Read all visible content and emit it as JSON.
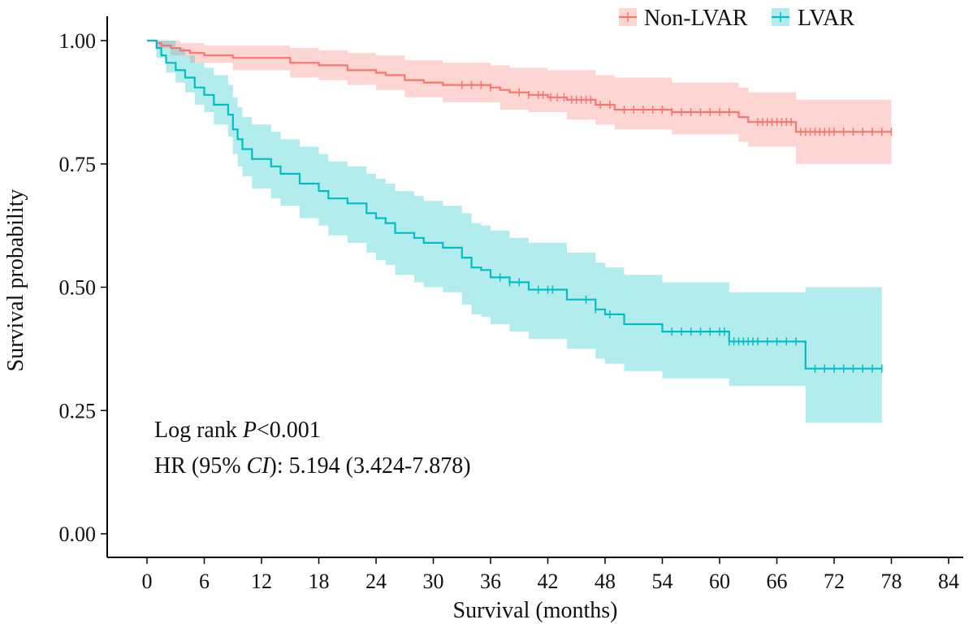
{
  "chart_data": {
    "type": "line",
    "subtype": "kaplan-meier",
    "title": "",
    "xlabel": "Survival (months)",
    "ylabel": "Survival probability",
    "xlim": [
      0,
      84
    ],
    "ylim": [
      0,
      1
    ],
    "xticks": [
      0,
      6,
      12,
      18,
      24,
      30,
      36,
      42,
      48,
      54,
      60,
      66,
      72,
      78,
      84
    ],
    "yticks": [
      0,
      0.25,
      0.5,
      0.75,
      1.0
    ],
    "ytick_labels": [
      "0.00",
      "0.25",
      "0.50",
      "0.75",
      "1.00"
    ],
    "grid": false,
    "legend": "top-right",
    "annotations": {
      "logrank_prefix": "Log rank ",
      "logrank_p": "P",
      "logrank_value": "<0.001",
      "hr_prefix": "HR (95% ",
      "hr_ci": "CI",
      "hr_value": "): 5.194 (3.424-7.878)"
    },
    "series": [
      {
        "name": "Non-LVAR",
        "color": "#F8766D",
        "fill": "#F8766D",
        "steps": [
          [
            0,
            1.0
          ],
          [
            1,
            0.995
          ],
          [
            1.5,
            0.99
          ],
          [
            2.5,
            0.985
          ],
          [
            3.5,
            0.98
          ],
          [
            4.5,
            0.975
          ],
          [
            6,
            0.97
          ],
          [
            9,
            0.965
          ],
          [
            15,
            0.955
          ],
          [
            18,
            0.95
          ],
          [
            21,
            0.94
          ],
          [
            24,
            0.935
          ],
          [
            25,
            0.93
          ],
          [
            27,
            0.92
          ],
          [
            29,
            0.915
          ],
          [
            31,
            0.91
          ],
          [
            36,
            0.905
          ],
          [
            37,
            0.9
          ],
          [
            38,
            0.895
          ],
          [
            40,
            0.89
          ],
          [
            42,
            0.885
          ],
          [
            44,
            0.88
          ],
          [
            47,
            0.87
          ],
          [
            49,
            0.86
          ],
          [
            55,
            0.855
          ],
          [
            62,
            0.845
          ],
          [
            63,
            0.835
          ],
          [
            68,
            0.815
          ]
        ],
        "end": 78,
        "ci_lower": [
          [
            0,
            1.0
          ],
          [
            1,
            0.985
          ],
          [
            2.5,
            0.97
          ],
          [
            4.5,
            0.955
          ],
          [
            9,
            0.94
          ],
          [
            15,
            0.925
          ],
          [
            18,
            0.92
          ],
          [
            21,
            0.91
          ],
          [
            24,
            0.9
          ],
          [
            27,
            0.885
          ],
          [
            31,
            0.875
          ],
          [
            37,
            0.86
          ],
          [
            40,
            0.855
          ],
          [
            44,
            0.84
          ],
          [
            47,
            0.83
          ],
          [
            49,
            0.82
          ],
          [
            55,
            0.81
          ],
          [
            62,
            0.795
          ],
          [
            63,
            0.785
          ],
          [
            68,
            0.75
          ]
        ],
        "ci_upper": [
          [
            0,
            1.0
          ],
          [
            1,
            1.0
          ],
          [
            3.5,
            0.995
          ],
          [
            6,
            0.99
          ],
          [
            9,
            0.99
          ],
          [
            15,
            0.985
          ],
          [
            18,
            0.98
          ],
          [
            21,
            0.975
          ],
          [
            24,
            0.97
          ],
          [
            27,
            0.96
          ],
          [
            31,
            0.955
          ],
          [
            36,
            0.95
          ],
          [
            38,
            0.945
          ],
          [
            42,
            0.94
          ],
          [
            47,
            0.93
          ],
          [
            49,
            0.925
          ],
          [
            55,
            0.915
          ],
          [
            62,
            0.905
          ],
          [
            63,
            0.895
          ],
          [
            68,
            0.88
          ]
        ],
        "censored": [
          33,
          34,
          35,
          36,
          39,
          40,
          41,
          41.5,
          42.3,
          43,
          43.7,
          44.5,
          45,
          45.5,
          46,
          46.5,
          47.5,
          48.5,
          50,
          51,
          52,
          53,
          54,
          55,
          56,
          57,
          58,
          59,
          60,
          61,
          64,
          64.5,
          65,
          65.5,
          66,
          66.5,
          67,
          67.5,
          68.5,
          69,
          69.5,
          70,
          70.5,
          71,
          71.5,
          72,
          73,
          74,
          75,
          76,
          77,
          78
        ]
      },
      {
        "name": "LVAR",
        "color": "#00BFC4",
        "fill": "#00BFC4",
        "steps": [
          [
            0,
            1.0
          ],
          [
            1,
            0.985
          ],
          [
            1.5,
            0.97
          ],
          [
            2,
            0.955
          ],
          [
            3,
            0.94
          ],
          [
            4,
            0.925
          ],
          [
            5,
            0.905
          ],
          [
            6,
            0.89
          ],
          [
            7,
            0.87
          ],
          [
            8.5,
            0.85
          ],
          [
            9,
            0.82
          ],
          [
            9.5,
            0.8
          ],
          [
            10,
            0.78
          ],
          [
            11,
            0.76
          ],
          [
            13,
            0.745
          ],
          [
            14,
            0.73
          ],
          [
            16,
            0.71
          ],
          [
            18,
            0.695
          ],
          [
            19,
            0.68
          ],
          [
            21,
            0.67
          ],
          [
            23,
            0.65
          ],
          [
            24,
            0.64
          ],
          [
            25,
            0.63
          ],
          [
            26,
            0.61
          ],
          [
            28,
            0.6
          ],
          [
            29,
            0.59
          ],
          [
            31,
            0.58
          ],
          [
            33,
            0.56
          ],
          [
            34,
            0.54
          ],
          [
            35,
            0.535
          ],
          [
            36,
            0.52
          ],
          [
            38,
            0.51
          ],
          [
            40,
            0.495
          ],
          [
            44,
            0.475
          ],
          [
            47,
            0.455
          ],
          [
            48,
            0.445
          ],
          [
            50,
            0.425
          ],
          [
            54,
            0.41
          ],
          [
            61,
            0.39
          ],
          [
            69,
            0.335
          ]
        ],
        "end": 77,
        "ci_lower": [
          [
            0,
            1.0
          ],
          [
            1,
            0.965
          ],
          [
            2,
            0.935
          ],
          [
            3,
            0.915
          ],
          [
            4,
            0.895
          ],
          [
            5,
            0.87
          ],
          [
            6,
            0.855
          ],
          [
            7,
            0.83
          ],
          [
            8.5,
            0.805
          ],
          [
            9,
            0.77
          ],
          [
            9.5,
            0.745
          ],
          [
            10,
            0.725
          ],
          [
            11,
            0.7
          ],
          [
            13,
            0.68
          ],
          [
            14,
            0.665
          ],
          [
            16,
            0.64
          ],
          [
            18,
            0.625
          ],
          [
            19,
            0.605
          ],
          [
            21,
            0.59
          ],
          [
            23,
            0.57
          ],
          [
            24,
            0.555
          ],
          [
            25,
            0.545
          ],
          [
            26,
            0.525
          ],
          [
            28,
            0.51
          ],
          [
            29,
            0.5
          ],
          [
            31,
            0.49
          ],
          [
            33,
            0.465
          ],
          [
            34,
            0.445
          ],
          [
            35,
            0.44
          ],
          [
            36,
            0.425
          ],
          [
            38,
            0.41
          ],
          [
            40,
            0.395
          ],
          [
            44,
            0.375
          ],
          [
            47,
            0.355
          ],
          [
            48,
            0.345
          ],
          [
            50,
            0.33
          ],
          [
            54,
            0.315
          ],
          [
            61,
            0.3
          ],
          [
            69,
            0.225
          ]
        ],
        "ci_upper": [
          [
            0,
            1.0
          ],
          [
            1,
            1.0
          ],
          [
            3,
            0.985
          ],
          [
            4,
            0.97
          ],
          [
            5,
            0.955
          ],
          [
            6,
            0.945
          ],
          [
            7,
            0.93
          ],
          [
            8.5,
            0.91
          ],
          [
            9,
            0.885
          ],
          [
            9.5,
            0.865
          ],
          [
            10,
            0.845
          ],
          [
            11,
            0.83
          ],
          [
            13,
            0.815
          ],
          [
            14,
            0.8
          ],
          [
            16,
            0.785
          ],
          [
            18,
            0.77
          ],
          [
            19,
            0.755
          ],
          [
            21,
            0.745
          ],
          [
            23,
            0.73
          ],
          [
            24,
            0.72
          ],
          [
            25,
            0.71
          ],
          [
            26,
            0.695
          ],
          [
            28,
            0.685
          ],
          [
            29,
            0.675
          ],
          [
            31,
            0.665
          ],
          [
            33,
            0.65
          ],
          [
            34,
            0.63
          ],
          [
            35,
            0.625
          ],
          [
            36,
            0.615
          ],
          [
            38,
            0.6
          ],
          [
            40,
            0.59
          ],
          [
            44,
            0.57
          ],
          [
            47,
            0.55
          ],
          [
            48,
            0.54
          ],
          [
            50,
            0.525
          ],
          [
            54,
            0.51
          ],
          [
            61,
            0.49
          ],
          [
            69,
            0.5
          ]
        ],
        "censored": [
          37,
          38,
          39,
          41,
          42,
          42.5,
          46,
          47,
          48.5,
          55,
          56,
          57,
          58,
          59,
          60,
          60.5,
          61,
          61.5,
          62,
          62.5,
          63,
          63.5,
          64,
          65,
          66,
          67,
          68,
          70,
          71,
          72,
          73,
          74,
          75,
          76,
          77
        ]
      }
    ]
  }
}
